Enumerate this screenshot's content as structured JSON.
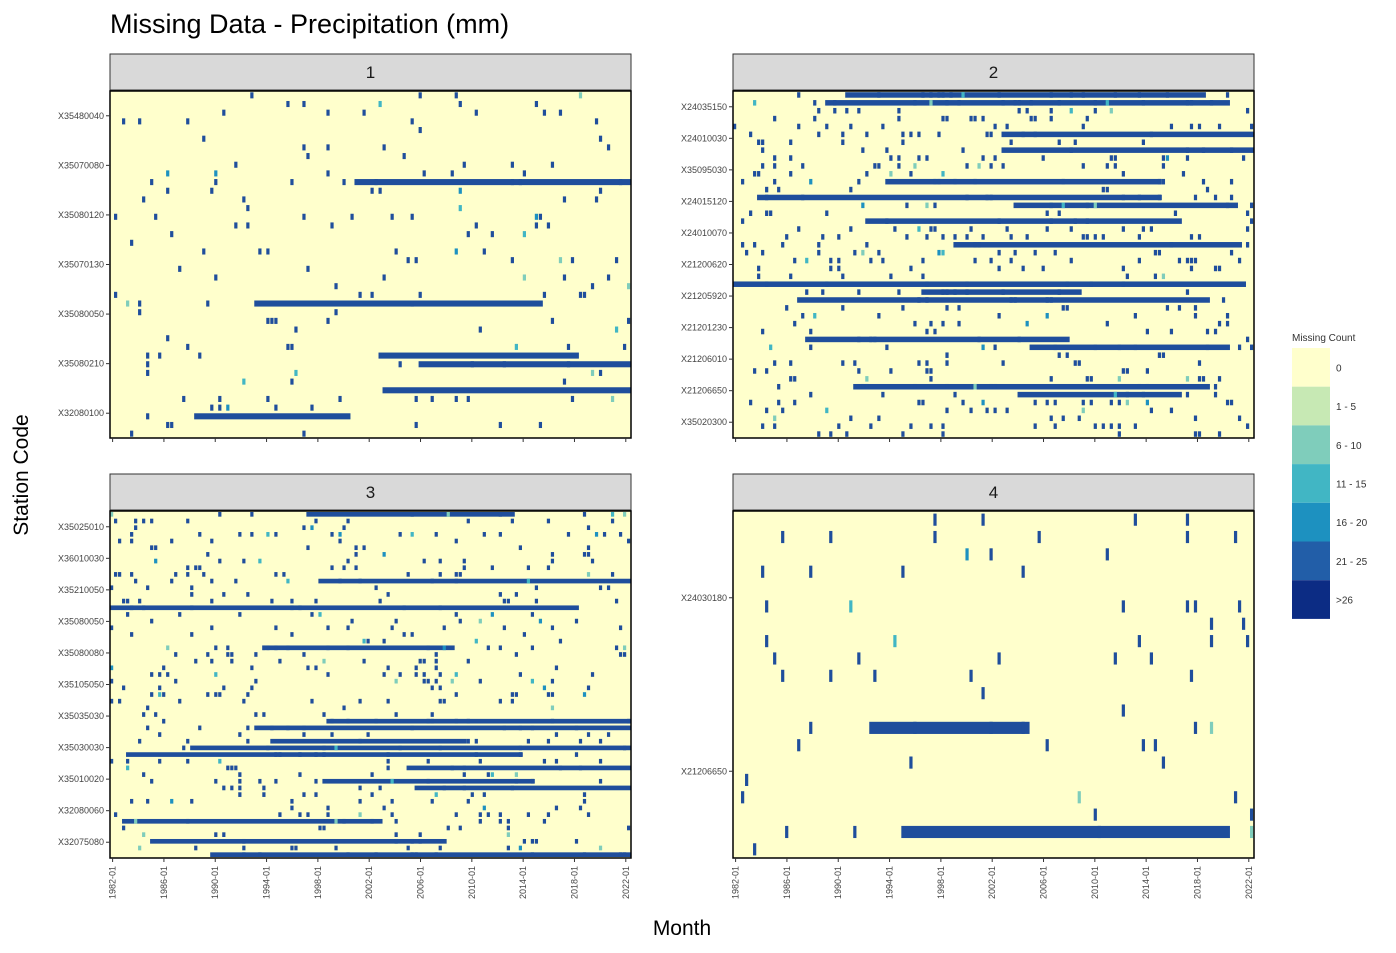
{
  "chart_data": {
    "type": "heatmap",
    "title": "Missing Data - Precipitation (mm)",
    "xlabel": "Month",
    "ylabel": "Station Code",
    "legend": {
      "title": "Missing Count",
      "position": "right",
      "levels": [
        {
          "label": "0",
          "color": "#ffffcc"
        },
        {
          "label": "1 - 5",
          "color": "#c7e9b4"
        },
        {
          "label": "6 - 10",
          "color": "#7fcdbb"
        },
        {
          "label": "11 - 15",
          "color": "#41b6c4"
        },
        {
          "label": "16 - 20",
          "color": "#1d91c0"
        },
        {
          "label": "21 - 25",
          "color": "#225ea8"
        },
        {
          "label": ">26",
          "color": "#0c2c84"
        }
      ]
    },
    "background_color": "#ffffcc",
    "missing_color": "#1f4e9c",
    "panels": [
      {
        "name": "1",
        "xticks": [
          "1982-01",
          "1986-01",
          "1990-01",
          "1994-01",
          "1998-01",
          "2002-01",
          "2006-01",
          "2010-01",
          "2014-01",
          "2018-01",
          "2022-01"
        ],
        "show_xticks": false,
        "yticks": [
          "X35480040",
          "X35070080",
          "X35080120",
          "X35070130",
          "X35080050",
          "X35080210",
          "X32080100"
        ],
        "rows": 40,
        "density": 0.1,
        "seed": 11
      },
      {
        "name": "2",
        "xticks": [
          "1982-01",
          "1986-01",
          "1990-01",
          "1994-01",
          "1998-01",
          "2002-01",
          "2006-01",
          "2010-01",
          "2014-01",
          "2018-01",
          "2022-01"
        ],
        "show_xticks": false,
        "yticks": [
          "X24035150",
          "X24010030",
          "X35095030",
          "X24015120",
          "X24010070",
          "X21200620",
          "X21205920",
          "X21201230",
          "X21206010",
          "X21206650",
          "X35020300"
        ],
        "rows": 44,
        "density": 0.22,
        "seed": 23
      },
      {
        "name": "3",
        "xticks": [
          "1982-01",
          "1986-01",
          "1990-01",
          "1994-01",
          "1998-01",
          "2002-01",
          "2006-01",
          "2010-01",
          "2014-01",
          "2018-01",
          "2022-01"
        ],
        "show_xticks": true,
        "yticks": [
          "X35025010",
          "X36010030",
          "X35210050",
          "X35080050",
          "X35080080",
          "X35105050",
          "X35035030",
          "X35030030",
          "X35010020",
          "X32080060",
          "X32075080"
        ],
        "rows": 52,
        "density": 0.2,
        "seed": 37
      },
      {
        "name": "4",
        "xticks": [
          "1982-01",
          "1986-01",
          "1990-01",
          "1994-01",
          "1998-01",
          "2002-01",
          "2006-01",
          "2010-01",
          "2014-01",
          "2018-01",
          "2022-01"
        ],
        "show_xticks": true,
        "yticks": [
          "X24030180",
          "X21206650"
        ],
        "rows": 20,
        "density": 0.07,
        "seed": 51
      }
    ]
  }
}
